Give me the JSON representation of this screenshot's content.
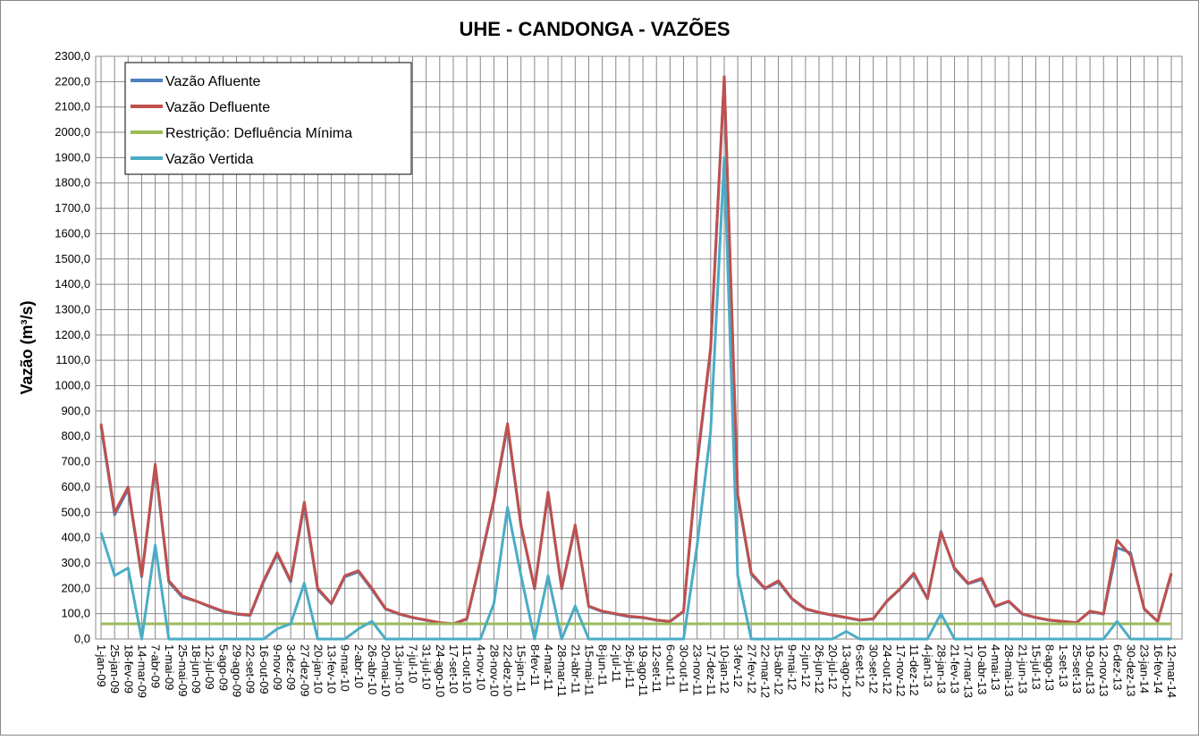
{
  "chart_data": {
    "type": "line",
    "title": "UHE - CANDONGA - VAZÕES",
    "y_label": "Vazão (m³/s)",
    "categories": [
      "1-jan-09",
      "25-jan-09",
      "18-fev-09",
      "14-mar-09",
      "7-abr-09",
      "1-mai-09",
      "25-mai-09",
      "18-jun-09",
      "12-jul-09",
      "5-ago-09",
      "29-ago-09",
      "22-set-09",
      "16-out-09",
      "9-nov-09",
      "3-dez-09",
      "27-dez-09",
      "20-jan-10",
      "13-fev-10",
      "9-mar-10",
      "2-abr-10",
      "26-abr-10",
      "20-mai-10",
      "13-jun-10",
      "7-jul-10",
      "31-jul-10",
      "24-ago-10",
      "17-set-10",
      "11-out-10",
      "4-nov-10",
      "28-nov-10",
      "22-dez-10",
      "15-jan-11",
      "8-fev-11",
      "4-mar-11",
      "28-mar-11",
      "21-abr-11",
      "15-mai-11",
      "8-jun-11",
      "2-jul-11",
      "26-jul-11",
      "19-ago-11",
      "12-set-11",
      "6-out-11",
      "30-out-11",
      "23-nov-11",
      "17-dez-11",
      "10-jan-12",
      "3-fev-12",
      "27-fev-12",
      "22-mar-12",
      "15-abr-12",
      "9-mai-12",
      "2-jun-12",
      "26-jun-12",
      "20-jul-12",
      "13-ago-12",
      "6-set-12",
      "30-set-12",
      "24-out-12",
      "17-nov-12",
      "11-dez-12",
      "4-jan-13",
      "28-jan-13",
      "21-fev-13",
      "17-mar-13",
      "10-abr-13",
      "4-mai-13",
      "28-mai-13",
      "21-jun-13",
      "15-jul-13",
      "8-ago-13",
      "1-set-13",
      "25-set-13",
      "19-out-13",
      "12-nov-13",
      "6-dez-13",
      "30-dez-13",
      "23-jan-14",
      "16-fev-14",
      "12-mar-14"
    ],
    "series": [
      {
        "name": "Vazão Afluente",
        "color": "#4f81bd",
        "values": [
          840,
          490,
          590,
          245,
          680,
          225,
          165,
          150,
          128,
          108,
          98,
          93,
          225,
          335,
          225,
          530,
          195,
          138,
          245,
          265,
          195,
          118,
          98,
          84,
          74,
          64,
          60,
          78,
          305,
          545,
          840,
          445,
          198,
          575,
          198,
          445,
          128,
          108,
          98,
          88,
          84,
          74,
          69,
          108,
          690,
          1140,
          2210,
          560,
          255,
          198,
          225,
          158,
          118,
          104,
          94,
          84,
          74,
          79,
          148,
          198,
          255,
          158,
          425,
          275,
          218,
          235,
          128,
          148,
          98,
          84,
          74,
          69,
          64,
          108,
          98,
          360,
          340,
          118,
          69,
          255
        ]
      },
      {
        "name": "Vazão Defluente",
        "color": "#c0504d",
        "values": [
          850,
          500,
          600,
          250,
          690,
          230,
          170,
          150,
          130,
          110,
          100,
          95,
          230,
          340,
          230,
          540,
          200,
          140,
          250,
          270,
          200,
          120,
          100,
          85,
          75,
          65,
          60,
          80,
          310,
          550,
          850,
          450,
          200,
          580,
          200,
          450,
          130,
          110,
          100,
          90,
          85,
          75,
          70,
          110,
          700,
          1150,
          2220,
          570,
          260,
          200,
          230,
          160,
          120,
          105,
          95,
          85,
          75,
          80,
          150,
          200,
          260,
          160,
          420,
          280,
          220,
          240,
          130,
          150,
          100,
          85,
          75,
          70,
          65,
          110,
          100,
          390,
          330,
          120,
          70,
          260
        ]
      },
      {
        "name": "Restrição: Defluência Mínima",
        "color": "#9bbb59",
        "values": [
          60,
          60,
          60,
          60,
          60,
          60,
          60,
          60,
          60,
          60,
          60,
          60,
          60,
          60,
          60,
          60,
          60,
          60,
          60,
          60,
          60,
          60,
          60,
          60,
          60,
          60,
          60,
          60,
          60,
          60,
          60,
          60,
          60,
          60,
          60,
          60,
          60,
          60,
          60,
          60,
          60,
          60,
          60,
          60,
          60,
          60,
          60,
          60,
          60,
          60,
          60,
          60,
          60,
          60,
          60,
          60,
          60,
          60,
          60,
          60,
          60,
          60,
          60,
          60,
          60,
          60,
          60,
          60,
          60,
          60,
          60,
          60,
          60,
          60,
          60,
          60,
          60,
          60,
          60,
          60
        ]
      },
      {
        "name": "Vazão Vertida",
        "color": "#4bacc6",
        "values": [
          420,
          250,
          280,
          0,
          370,
          0,
          0,
          0,
          0,
          0,
          0,
          0,
          0,
          40,
          60,
          220,
          0,
          0,
          0,
          40,
          70,
          0,
          0,
          0,
          0,
          0,
          0,
          0,
          0,
          140,
          520,
          250,
          0,
          250,
          0,
          130,
          0,
          0,
          0,
          0,
          0,
          0,
          0,
          0,
          370,
          820,
          1900,
          250,
          0,
          0,
          0,
          0,
          0,
          0,
          0,
          30,
          0,
          0,
          0,
          0,
          0,
          0,
          100,
          0,
          0,
          0,
          0,
          0,
          0,
          0,
          0,
          0,
          0,
          0,
          0,
          70,
          0,
          0,
          0,
          0
        ]
      }
    ],
    "ylim": [
      0,
      2300
    ],
    "yticks": [
      {
        "value": 0,
        "label": "0,0"
      },
      {
        "value": 100,
        "label": "100,0"
      },
      {
        "value": 200,
        "label": "200,0"
      },
      {
        "value": 300,
        "label": "300,0"
      },
      {
        "value": 400,
        "label": "400,0"
      },
      {
        "value": 500,
        "label": "500,0"
      },
      {
        "value": 600,
        "label": "600,0"
      },
      {
        "value": 700,
        "label": "700,0"
      },
      {
        "value": 800,
        "label": "800,0"
      },
      {
        "value": 900,
        "label": "900,0"
      },
      {
        "value": 1000,
        "label": "1000,0"
      },
      {
        "value": 1100,
        "label": "1100,0"
      },
      {
        "value": 1200,
        "label": "1200,0"
      },
      {
        "value": 1300,
        "label": "1300,0"
      },
      {
        "value": 1400,
        "label": "1400,0"
      },
      {
        "value": 1500,
        "label": "1500,0"
      },
      {
        "value": 1600,
        "label": "1600,0"
      },
      {
        "value": 1700,
        "label": "1700,0"
      },
      {
        "value": 1800,
        "label": "1800,0"
      },
      {
        "value": 1900,
        "label": "1900,0"
      },
      {
        "value": 2000,
        "label": "2000,0"
      },
      {
        "value": 2100,
        "label": "2100,0"
      },
      {
        "value": 2200,
        "label": "2200,0"
      },
      {
        "value": 2300,
        "label": "2300,0"
      }
    ],
    "grid": true,
    "legend": "top-left"
  }
}
